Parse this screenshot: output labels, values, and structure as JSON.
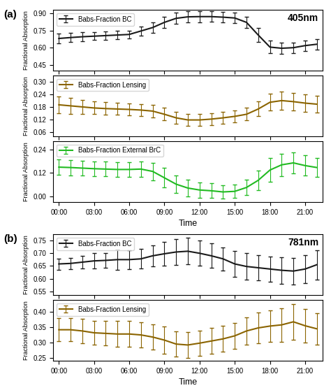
{
  "chart_data": [
    {
      "type": "line",
      "annotations": [
        "(a)",
        "405nm"
      ],
      "y_label": "Fractional Absorption",
      "x": [
        0,
        1,
        2,
        3,
        4,
        5,
        6,
        7,
        8,
        9,
        10,
        11,
        12,
        13,
        14,
        15,
        16,
        17,
        18,
        19,
        20,
        21,
        22
      ],
      "xlim": [
        -0.5,
        22.5
      ],
      "xticks": [
        {
          "value": 0,
          "label": "00:00"
        },
        {
          "value": 3,
          "label": "03:00"
        },
        {
          "value": 6,
          "label": "06:00"
        },
        {
          "value": 9,
          "label": "09:00"
        },
        {
          "value": 12,
          "label": "12:00"
        },
        {
          "value": 15,
          "label": "15:00"
        },
        {
          "value": 18,
          "label": "18:00"
        },
        {
          "value": 21,
          "label": "21:00"
        }
      ],
      "ylim": [
        0.4,
        0.93
      ],
      "yticks": [
        0.45,
        {
          "value": 0.6,
          "label": "0.60"
        },
        0.75,
        {
          "value": 0.9,
          "label": "0.90"
        }
      ],
      "tick_labels": "y",
      "legend": "upper left",
      "series": [
        {
          "name": "Babs-Fraction BC",
          "color": "#1a1a1a",
          "values": [
            0.68,
            0.688,
            0.695,
            0.7,
            0.705,
            0.71,
            0.715,
            0.745,
            0.775,
            0.82,
            0.855,
            0.868,
            0.87,
            0.87,
            0.865,
            0.858,
            0.82,
            0.71,
            0.605,
            0.595,
            0.6,
            0.618,
            0.63
          ],
          "errors": [
            0.04,
            0.04,
            0.038,
            0.035,
            0.035,
            0.035,
            0.035,
            0.04,
            0.045,
            0.05,
            0.05,
            0.05,
            0.048,
            0.045,
            0.045,
            0.045,
            0.05,
            0.06,
            0.055,
            0.05,
            0.045,
            0.045,
            0.045
          ]
        }
      ]
    },
    {
      "type": "line",
      "y_label": "Fractional Absorption",
      "x": [
        0,
        1,
        2,
        3,
        4,
        5,
        6,
        7,
        8,
        9,
        10,
        11,
        12,
        13,
        14,
        15,
        16,
        17,
        18,
        19,
        20,
        21,
        22
      ],
      "xlim": [
        -0.5,
        22.5
      ],
      "xticks": [
        {
          "value": 0,
          "label": "00:00"
        },
        {
          "value": 3,
          "label": "03:00"
        },
        {
          "value": 6,
          "label": "06:00"
        },
        {
          "value": 9,
          "label": "09:00"
        },
        {
          "value": 12,
          "label": "12:00"
        },
        {
          "value": 15,
          "label": "15:00"
        },
        {
          "value": 18,
          "label": "18:00"
        },
        {
          "value": 21,
          "label": "21:00"
        }
      ],
      "ylim": [
        0.04,
        0.33
      ],
      "yticks": [
        0.06,
        0.12,
        0.18,
        0.24,
        {
          "value": 0.3,
          "label": "0.30"
        }
      ],
      "tick_labels": "y",
      "legend": "upper left",
      "series": [
        {
          "name": "Babs-Fraction Lensing",
          "color": "#8B6400",
          "values": [
            0.19,
            0.185,
            0.18,
            0.175,
            0.172,
            0.17,
            0.168,
            0.165,
            0.16,
            0.145,
            0.128,
            0.118,
            0.118,
            0.122,
            0.128,
            0.135,
            0.145,
            0.17,
            0.202,
            0.21,
            0.205,
            0.198,
            0.193
          ],
          "errors": [
            0.04,
            0.038,
            0.032,
            0.03,
            0.03,
            0.028,
            0.028,
            0.028,
            0.03,
            0.03,
            0.028,
            0.028,
            0.028,
            0.028,
            0.028,
            0.028,
            0.03,
            0.035,
            0.04,
            0.042,
            0.042,
            0.04,
            0.04
          ]
        }
      ]
    },
    {
      "type": "line",
      "x_label": "Time",
      "y_label": "Fractional Absorption",
      "x": [
        0,
        1,
        2,
        3,
        4,
        5,
        6,
        7,
        8,
        9,
        10,
        11,
        12,
        13,
        14,
        15,
        16,
        17,
        18,
        19,
        20,
        21,
        22
      ],
      "xlim": [
        -0.5,
        22.5
      ],
      "xticks": [
        {
          "value": 0,
          "label": "00:00"
        },
        {
          "value": 3,
          "label": "03:00"
        },
        {
          "value": 6,
          "label": "06:00"
        },
        {
          "value": 9,
          "label": "09:00"
        },
        {
          "value": 12,
          "label": "12:00"
        },
        {
          "value": 15,
          "label": "15:00"
        },
        {
          "value": 18,
          "label": "18:00"
        },
        {
          "value": 21,
          "label": "21:00"
        }
      ],
      "ylim": [
        -0.03,
        0.285
      ],
      "yticks": [
        {
          "value": 0.0,
          "label": "0.00"
        },
        0.12,
        0.24
      ],
      "legend": "upper left",
      "series": [
        {
          "name": "Babs-Fraction External BrC",
          "color": "#22bb22",
          "values": [
            0.15,
            0.148,
            0.145,
            0.142,
            0.14,
            0.138,
            0.138,
            0.14,
            0.128,
            0.095,
            0.062,
            0.042,
            0.032,
            0.028,
            0.022,
            0.025,
            0.045,
            0.082,
            0.135,
            0.162,
            0.172,
            0.158,
            0.148
          ],
          "errors": [
            0.04,
            0.04,
            0.038,
            0.038,
            0.038,
            0.038,
            0.038,
            0.04,
            0.045,
            0.05,
            0.045,
            0.042,
            0.04,
            0.038,
            0.035,
            0.035,
            0.04,
            0.05,
            0.062,
            0.058,
            0.055,
            0.052,
            0.048
          ]
        }
      ]
    },
    {
      "type": "line",
      "annotations": [
        "(b)",
        "781nm"
      ],
      "y_label": "Fractional Absorption",
      "x": [
        0,
        1,
        2,
        3,
        4,
        5,
        6,
        7,
        8,
        9,
        10,
        11,
        12,
        13,
        14,
        15,
        16,
        17,
        18,
        19,
        20,
        21,
        22
      ],
      "xlim": [
        -0.5,
        22.5
      ],
      "xticks": [
        {
          "value": 0,
          "label": "00:00"
        },
        {
          "value": 3,
          "label": "03:00"
        },
        {
          "value": 6,
          "label": "06:00"
        },
        {
          "value": 9,
          "label": "09:00"
        },
        {
          "value": 12,
          "label": "12:00"
        },
        {
          "value": 15,
          "label": "15:00"
        },
        {
          "value": 18,
          "label": "18:00"
        },
        {
          "value": 21,
          "label": "21:00"
        }
      ],
      "ylim": [
        0.535,
        0.775
      ],
      "yticks": [
        0.55,
        {
          "value": 0.6,
          "label": "0.60"
        },
        0.65,
        {
          "value": 0.7,
          "label": "0.70"
        },
        0.75
      ],
      "tick_labels": "y",
      "legend": "upper left",
      "series": [
        {
          "name": "Babs-Fraction BC",
          "color": "#1a1a1a",
          "values": [
            0.658,
            0.66,
            0.665,
            0.67,
            0.672,
            0.675,
            0.675,
            0.678,
            0.69,
            0.698,
            0.705,
            0.708,
            0.7,
            0.69,
            0.678,
            0.658,
            0.648,
            0.643,
            0.638,
            0.633,
            0.63,
            0.638,
            0.655
          ],
          "errors": [
            0.022,
            0.022,
            0.025,
            0.03,
            0.03,
            0.04,
            0.038,
            0.038,
            0.042,
            0.048,
            0.05,
            0.052,
            0.05,
            0.048,
            0.045,
            0.052,
            0.052,
            0.05,
            0.05,
            0.052,
            0.052,
            0.055,
            0.058
          ]
        }
      ]
    },
    {
      "type": "line",
      "x_label": "Time",
      "y_label": "Fractional Absorption",
      "x": [
        0,
        1,
        2,
        3,
        4,
        5,
        6,
        7,
        8,
        9,
        10,
        11,
        12,
        13,
        14,
        15,
        16,
        17,
        18,
        19,
        20,
        21,
        22
      ],
      "xlim": [
        -0.5,
        22.5
      ],
      "xticks": [
        {
          "value": 0,
          "label": "00:00"
        },
        {
          "value": 3,
          "label": "03:00"
        },
        {
          "value": 6,
          "label": "06:00"
        },
        {
          "value": 9,
          "label": "09:00"
        },
        {
          "value": 12,
          "label": "12:00"
        },
        {
          "value": 15,
          "label": "15:00"
        },
        {
          "value": 18,
          "label": "18:00"
        },
        {
          "value": 21,
          "label": "21:00"
        }
      ],
      "ylim": [
        0.24,
        0.44
      ],
      "yticks": [
        0.25,
        {
          "value": 0.3,
          "label": "0.30"
        },
        0.35,
        {
          "value": 0.4,
          "label": "0.40"
        }
      ],
      "legend": "upper left",
      "series": [
        {
          "name": "Babs-Fraction Lensing",
          "color": "#8B6400",
          "values": [
            0.342,
            0.342,
            0.338,
            0.332,
            0.33,
            0.328,
            0.328,
            0.325,
            0.318,
            0.308,
            0.295,
            0.292,
            0.298,
            0.305,
            0.312,
            0.322,
            0.338,
            0.348,
            0.354,
            0.358,
            0.368,
            0.355,
            0.345
          ],
          "errors": [
            0.038,
            0.038,
            0.04,
            0.04,
            0.04,
            0.042,
            0.042,
            0.042,
            0.042,
            0.045,
            0.042,
            0.042,
            0.042,
            0.042,
            0.042,
            0.042,
            0.045,
            0.05,
            0.052,
            0.055,
            0.058,
            0.055,
            0.052
          ]
        }
      ]
    }
  ]
}
